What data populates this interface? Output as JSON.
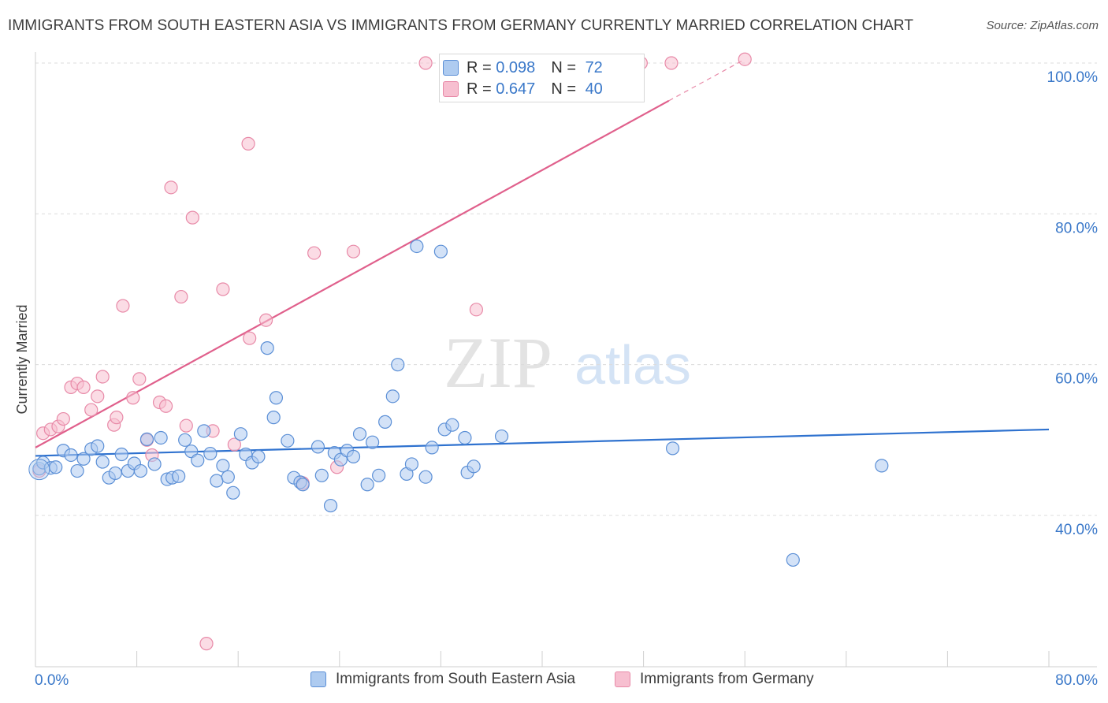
{
  "title": "IMMIGRANTS FROM SOUTH EASTERN ASIA VS IMMIGRANTS FROM GERMANY CURRENTLY MARRIED CORRELATION CHART",
  "source": "Source: ZipAtlas.com",
  "watermark": {
    "zip": "ZIP",
    "atlas": "atlas"
  },
  "colors": {
    "blue_fill": "#aecbf0",
    "blue_stroke": "#5b8fd6",
    "blue_line": "#2f72cf",
    "pink_fill": "#f7bfd0",
    "pink_stroke": "#e88aa8",
    "pink_line": "#e0608c",
    "axis_text": "#3a78c9",
    "grid": "#dcdcdc"
  },
  "stat_legend": [
    {
      "r_label": "R = ",
      "r_value": "0.098",
      "n_label": "N = ",
      "n_value": "72",
      "series": "blue"
    },
    {
      "r_label": "R = ",
      "r_value": "0.647",
      "n_label": "N = ",
      "n_value": "40",
      "series": "pink"
    }
  ],
  "chart_data": {
    "type": "scatter",
    "title": "IMMIGRANTS FROM SOUTH EASTERN ASIA VS IMMIGRANTS FROM GERMANY CURRENTLY MARRIED CORRELATION CHART",
    "xlabel": "",
    "ylabel": "Currently Married",
    "xlim": [
      0,
      80
    ],
    "ylim": [
      20,
      102
    ],
    "x_tick_labels": [
      {
        "value": 0,
        "label": "0.0%"
      },
      {
        "value": 80,
        "label": "80.0%"
      }
    ],
    "x_ticks": [
      0,
      8,
      16,
      24,
      32,
      40,
      48,
      56,
      64,
      72,
      80
    ],
    "y_tick_labels": [
      {
        "value": 40,
        "label": "40.0%"
      },
      {
        "value": 60,
        "label": "60.0%"
      },
      {
        "value": 80,
        "label": "80.0%"
      },
      {
        "value": 100,
        "label": "100.0%"
      }
    ],
    "y_gridlines": [
      40,
      60,
      80,
      100
    ],
    "grid": true,
    "legend_position": "bottom",
    "series": [
      {
        "name": "Immigrants from South Eastern Asia",
        "color": "blue",
        "trend": {
          "x0": 0,
          "y0": 47.9,
          "x1": 80,
          "y1": 51.4
        },
        "points": [
          [
            0.3,
            46.2
          ],
          [
            0.6,
            47.0
          ],
          [
            1.2,
            46.3
          ],
          [
            1.6,
            46.4
          ],
          [
            2.2,
            48.6
          ],
          [
            2.8,
            48.0
          ],
          [
            3.3,
            45.9
          ],
          [
            3.8,
            47.5
          ],
          [
            4.4,
            48.8
          ],
          [
            4.9,
            49.2
          ],
          [
            5.3,
            47.1
          ],
          [
            5.8,
            45.0
          ],
          [
            6.3,
            45.6
          ],
          [
            6.8,
            48.1
          ],
          [
            7.3,
            45.9
          ],
          [
            7.8,
            46.9
          ],
          [
            8.3,
            45.9
          ],
          [
            8.8,
            50.1
          ],
          [
            9.4,
            46.8
          ],
          [
            9.9,
            50.3
          ],
          [
            10.4,
            44.8
          ],
          [
            10.8,
            45.0
          ],
          [
            11.3,
            45.2
          ],
          [
            11.8,
            50.0
          ],
          [
            12.3,
            48.5
          ],
          [
            12.8,
            47.3
          ],
          [
            13.3,
            51.2
          ],
          [
            13.8,
            48.2
          ],
          [
            14.3,
            44.6
          ],
          [
            14.8,
            46.6
          ],
          [
            15.2,
            45.1
          ],
          [
            15.6,
            43.0
          ],
          [
            16.2,
            50.8
          ],
          [
            16.6,
            48.1
          ],
          [
            17.1,
            47.0
          ],
          [
            17.6,
            47.8
          ],
          [
            18.3,
            62.2
          ],
          [
            18.8,
            53.0
          ],
          [
            19.0,
            55.6
          ],
          [
            19.9,
            49.9
          ],
          [
            20.4,
            45.0
          ],
          [
            20.9,
            44.4
          ],
          [
            21.1,
            44.1
          ],
          [
            22.3,
            49.1
          ],
          [
            22.6,
            45.3
          ],
          [
            23.3,
            41.3
          ],
          [
            23.6,
            48.3
          ],
          [
            24.1,
            47.4
          ],
          [
            24.6,
            48.6
          ],
          [
            25.1,
            47.8
          ],
          [
            25.6,
            50.8
          ],
          [
            26.2,
            44.1
          ],
          [
            26.6,
            49.7
          ],
          [
            27.1,
            45.3
          ],
          [
            27.6,
            52.4
          ],
          [
            28.2,
            55.8
          ],
          [
            28.6,
            60.0
          ],
          [
            29.3,
            45.5
          ],
          [
            29.7,
            46.8
          ],
          [
            30.1,
            75.7
          ],
          [
            30.8,
            45.1
          ],
          [
            31.3,
            49.0
          ],
          [
            32.0,
            75.0
          ],
          [
            32.3,
            51.4
          ],
          [
            32.9,
            52.0
          ],
          [
            33.9,
            50.3
          ],
          [
            34.1,
            45.7
          ],
          [
            34.6,
            46.5
          ],
          [
            36.8,
            50.5
          ],
          [
            50.3,
            48.9
          ],
          [
            59.8,
            34.1
          ],
          [
            66.8,
            46.6
          ]
        ]
      },
      {
        "name": "Immigrants from Germany",
        "color": "pink",
        "trend": {
          "x0": 0,
          "y0": 49.0,
          "x1": 50,
          "y1": 95.0,
          "dashed_to_x": 56,
          "dashed_to_y": 100.5
        },
        "points": [
          [
            0.3,
            45.9
          ],
          [
            0.6,
            50.9
          ],
          [
            1.2,
            51.4
          ],
          [
            1.8,
            51.8
          ],
          [
            2.2,
            52.8
          ],
          [
            2.8,
            57.0
          ],
          [
            3.3,
            57.5
          ],
          [
            3.8,
            57.0
          ],
          [
            4.4,
            54.0
          ],
          [
            4.9,
            55.8
          ],
          [
            5.3,
            58.4
          ],
          [
            6.2,
            52.0
          ],
          [
            6.4,
            53.0
          ],
          [
            6.9,
            67.8
          ],
          [
            7.7,
            55.6
          ],
          [
            8.2,
            58.1
          ],
          [
            8.8,
            50.0
          ],
          [
            9.2,
            48.0
          ],
          [
            9.8,
            55.0
          ],
          [
            10.3,
            54.5
          ],
          [
            10.7,
            83.5
          ],
          [
            11.5,
            69.0
          ],
          [
            11.9,
            51.9
          ],
          [
            12.4,
            79.5
          ],
          [
            13.5,
            23.0
          ],
          [
            14.0,
            51.2
          ],
          [
            14.8,
            70.0
          ],
          [
            15.7,
            49.4
          ],
          [
            16.8,
            89.3
          ],
          [
            16.9,
            63.5
          ],
          [
            18.2,
            65.9
          ],
          [
            21.1,
            44.3
          ],
          [
            22.0,
            74.8
          ],
          [
            23.8,
            46.4
          ],
          [
            25.1,
            75.0
          ],
          [
            30.8,
            100.0
          ],
          [
            34.8,
            67.3
          ],
          [
            47.8,
            100.0
          ],
          [
            50.2,
            100.0
          ],
          [
            56.0,
            100.5
          ]
        ]
      }
    ]
  }
}
